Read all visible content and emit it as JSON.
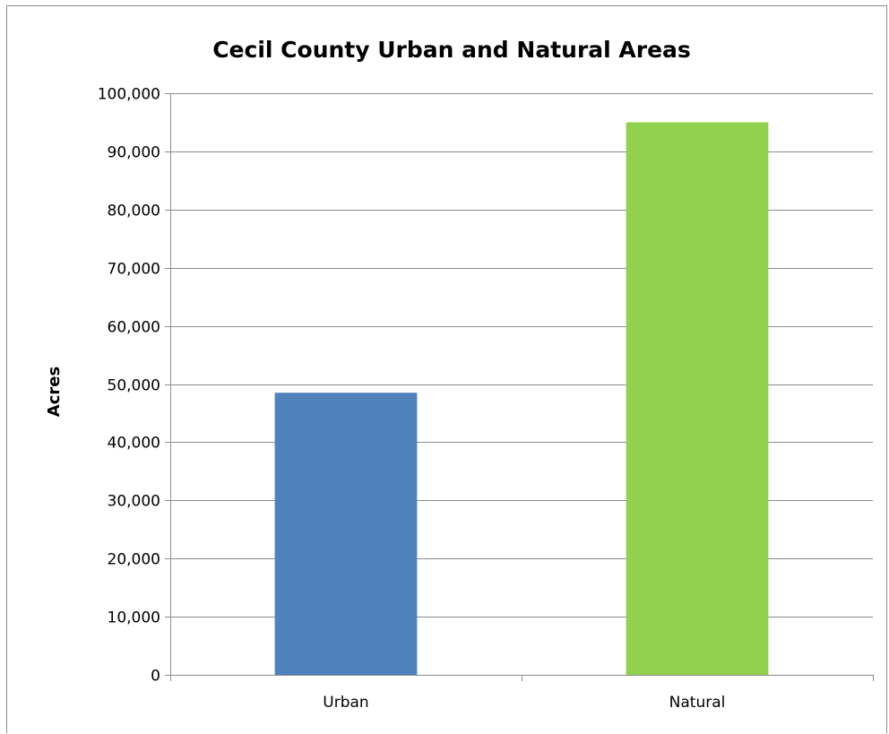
{
  "chart_data": {
    "type": "bar",
    "title": "Cecil County Urban and Natural Areas",
    "xlabel": "",
    "ylabel": "Acres",
    "categories": [
      "Urban",
      "Natural"
    ],
    "values": [
      48500,
      95000
    ],
    "ylim": [
      0,
      100000
    ],
    "yticks": [
      "0",
      "10,000",
      "20,000",
      "30,000",
      "40,000",
      "50,000",
      "60,000",
      "70,000",
      "80,000",
      "90,000",
      "100,000"
    ],
    "grid": true,
    "legend": "none",
    "bar_colors": [
      "#4f81bd",
      "#92d050"
    ],
    "gridline_color": "#8c8c8c"
  }
}
